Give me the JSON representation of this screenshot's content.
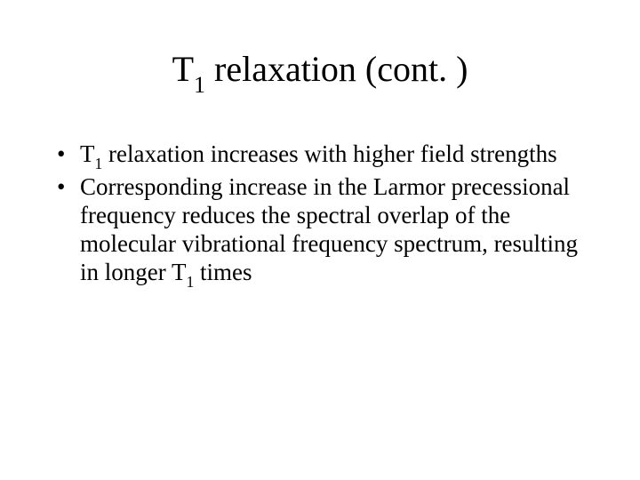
{
  "background_color": "#ffffff",
  "text_color": "#000000",
  "font_family": "Times New Roman",
  "title": {
    "pre": "T",
    "sub": "1",
    "post": " relaxation (cont. )",
    "fontsize": 40
  },
  "bullets": [
    {
      "segments": [
        {
          "text": "T",
          "sub": false
        },
        {
          "text": "1",
          "sub": true
        },
        {
          "text": " relaxation increases with higher field strengths",
          "sub": false
        }
      ]
    },
    {
      "segments": [
        {
          "text": "Corresponding increase in the Larmor precessional frequency reduces the spectral overlap of the molecular vibrational frequency spectrum, resulting in longer T",
          "sub": false
        },
        {
          "text": "1",
          "sub": true
        },
        {
          "text": " times",
          "sub": false
        }
      ]
    }
  ],
  "bullet_fontsize": 27
}
